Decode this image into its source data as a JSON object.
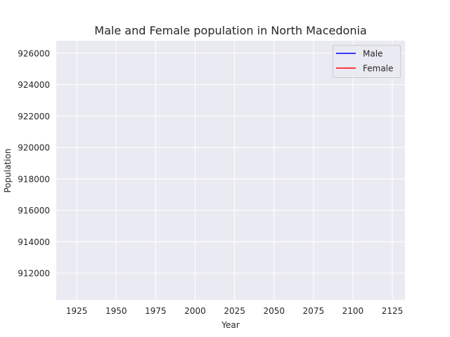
{
  "chart_data": {
    "type": "line",
    "title": "Male and Female population in North Macedonia",
    "xlabel": "Year",
    "ylabel": "Population",
    "xlim": [
      1912,
      2133
    ],
    "ylim": [
      910300,
      926800
    ],
    "x_ticks": [
      1925,
      1950,
      1975,
      2000,
      2025,
      2050,
      2075,
      2100,
      2125
    ],
    "y_ticks": [
      912000,
      914000,
      916000,
      918000,
      920000,
      922000,
      924000,
      926000
    ],
    "grid": true,
    "legend_position": "top-right",
    "series": [
      {
        "name": "Male",
        "color": "#0000ff",
        "x": [],
        "y": []
      },
      {
        "name": "Female",
        "color": "#ff0000",
        "x": [],
        "y": []
      }
    ],
    "colors": {
      "plot_background": "#eaeaf2",
      "grid": "#ffffff",
      "text": "#262626"
    }
  }
}
